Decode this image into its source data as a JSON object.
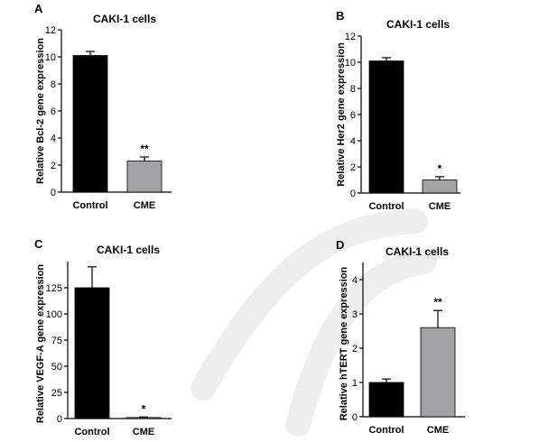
{
  "colors": {
    "black_bar": "#000000",
    "gray_bar": "#a3a3a6",
    "axis": "#000000",
    "watermark": "#eeeeee"
  },
  "chart_data": [
    {
      "type": "bar",
      "panel": "A",
      "title": "CAKI-1 cells",
      "ylabel": "Relative Bcl-2 gene expression",
      "categories": [
        "Control",
        "CME"
      ],
      "values": [
        10.1,
        2.3
      ],
      "errors": [
        0.3,
        0.3
      ],
      "significance": [
        "",
        "**"
      ],
      "bar_colors": [
        "#000000",
        "#a3a3a6"
      ],
      "ylim": [
        0,
        12
      ],
      "yticks": [
        0,
        2,
        4,
        6,
        8,
        10,
        12
      ],
      "ytick_labels": [
        "0",
        "2",
        "4",
        "6",
        "8",
        "10",
        "12"
      ],
      "grid": false
    },
    {
      "type": "bar",
      "panel": "B",
      "title": "CAKI-1 cells",
      "ylabel": "Relative Her2 gene expression",
      "categories": [
        "Control",
        "CME"
      ],
      "values": [
        10.1,
        1.0
      ],
      "errors": [
        0.25,
        0.25
      ],
      "significance": [
        "",
        "*"
      ],
      "bar_colors": [
        "#000000",
        "#a3a3a6"
      ],
      "ylim": [
        0,
        12
      ],
      "yticks": [
        0,
        2,
        4,
        6,
        8,
        10,
        12
      ],
      "ytick_labels": [
        "0",
        "2",
        "4",
        "6",
        "8",
        "10",
        "12"
      ],
      "grid": false
    },
    {
      "type": "bar",
      "panel": "C",
      "title": "CAKI-1 cells",
      "ylabel": "Relative VEGF-A gene expression",
      "categories": [
        "Control",
        "CME"
      ],
      "values": [
        125,
        1
      ],
      "errors": [
        20,
        0.5
      ],
      "significance": [
        "",
        "*"
      ],
      "bar_colors": [
        "#000000",
        "#a3a3a6"
      ],
      "ylim": [
        0,
        150
      ],
      "yticks": [
        0,
        25,
        50,
        75,
        100,
        125
      ],
      "ytick_labels": [
        "0",
        "25",
        "50",
        "75",
        "100",
        "125"
      ],
      "grid": false
    },
    {
      "type": "bar",
      "panel": "D",
      "title": "CAKI-1 cells",
      "ylabel": "Relative hTERT gene expression",
      "categories": [
        "Control",
        "CME"
      ],
      "values": [
        1.0,
        2.6
      ],
      "errors": [
        0.1,
        0.5
      ],
      "significance": [
        "",
        "**"
      ],
      "bar_colors": [
        "#000000",
        "#a3a3a6"
      ],
      "ylim": [
        0,
        4.5
      ],
      "yticks": [
        0,
        1,
        2,
        3,
        4
      ],
      "ytick_labels": [
        "0",
        "1",
        "2",
        "3",
        "4"
      ],
      "grid": false
    }
  ]
}
